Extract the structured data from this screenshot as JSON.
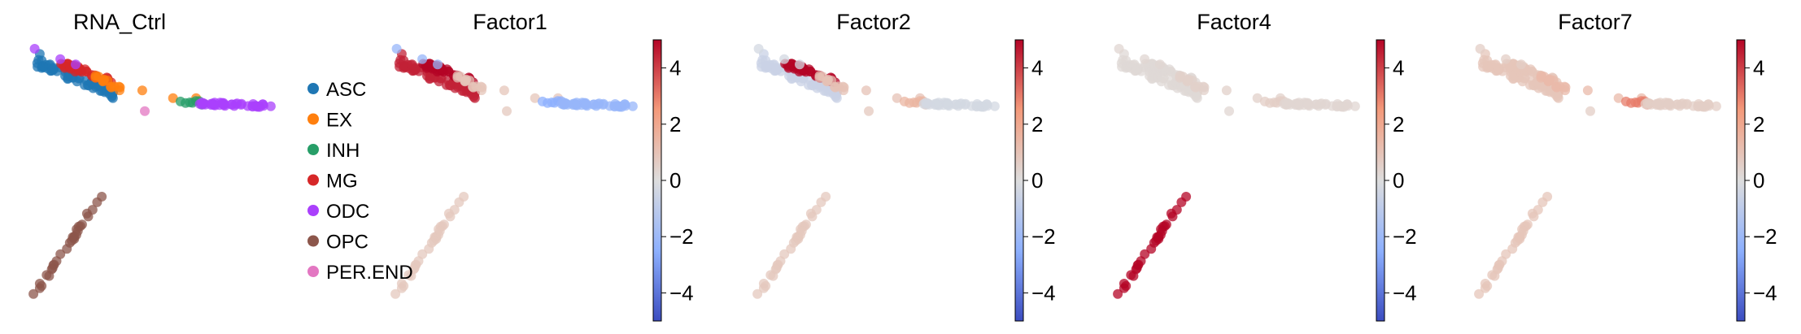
{
  "chart_data": {
    "type": "scatter",
    "colorbar": {
      "min": -5,
      "max": 5,
      "ticks": [
        "4",
        "2",
        "0",
        "−2",
        "−4"
      ],
      "tick_values": [
        4,
        2,
        0,
        -2,
        -4
      ],
      "colormap": "coolwarm"
    },
    "legend": {
      "placement": "right",
      "entries": [
        {
          "label": "ASC",
          "color": "#1f77b4"
        },
        {
          "label": "EX",
          "color": "#ff7f0e"
        },
        {
          "label": "INH",
          "color": "#279e68"
        },
        {
          "label": "MG",
          "color": "#d62728"
        },
        {
          "label": "ODC",
          "color": "#aa40fc"
        },
        {
          "label": "OPC",
          "color": "#8c564b"
        },
        {
          "label": "PER.END",
          "color": "#e377c2"
        }
      ]
    },
    "panels": [
      {
        "title": "RNA_Ctrl",
        "color_by": "category",
        "cluster_values": {
          "ASC": null,
          "EX": null,
          "INH": null,
          "MG": null,
          "ODC": null,
          "OPC": null,
          "PER.END": null
        }
      },
      {
        "title": "Factor1",
        "color_by": "value",
        "cluster_values": {
          "ASC": 4.5,
          "EX": 0.9,
          "INH": -2.5,
          "MG": 5.0,
          "ODC": -2.2,
          "OPC": 0.8,
          "PER.END": 0.8
        }
      },
      {
        "title": "Factor2",
        "color_by": "value",
        "cluster_values": {
          "ASC": -0.6,
          "EX": 1.0,
          "INH": 1.5,
          "MG": 5.0,
          "ODC": -0.3,
          "OPC": 0.8,
          "PER.END": 0.8
        }
      },
      {
        "title": "Factor4",
        "color_by": "value",
        "cluster_values": {
          "ASC": 0.2,
          "EX": 0.5,
          "INH": 0.6,
          "MG": 0.2,
          "ODC": 0.3,
          "OPC": 5.0,
          "PER.END": 0.3
        }
      },
      {
        "title": "Factor7",
        "color_by": "value",
        "cluster_values": {
          "ASC": 0.9,
          "EX": 1.3,
          "INH": 3.0,
          "MG": 0.9,
          "ODC": 0.6,
          "OPC": 0.9,
          "PER.END": 0.6
        }
      }
    ]
  }
}
